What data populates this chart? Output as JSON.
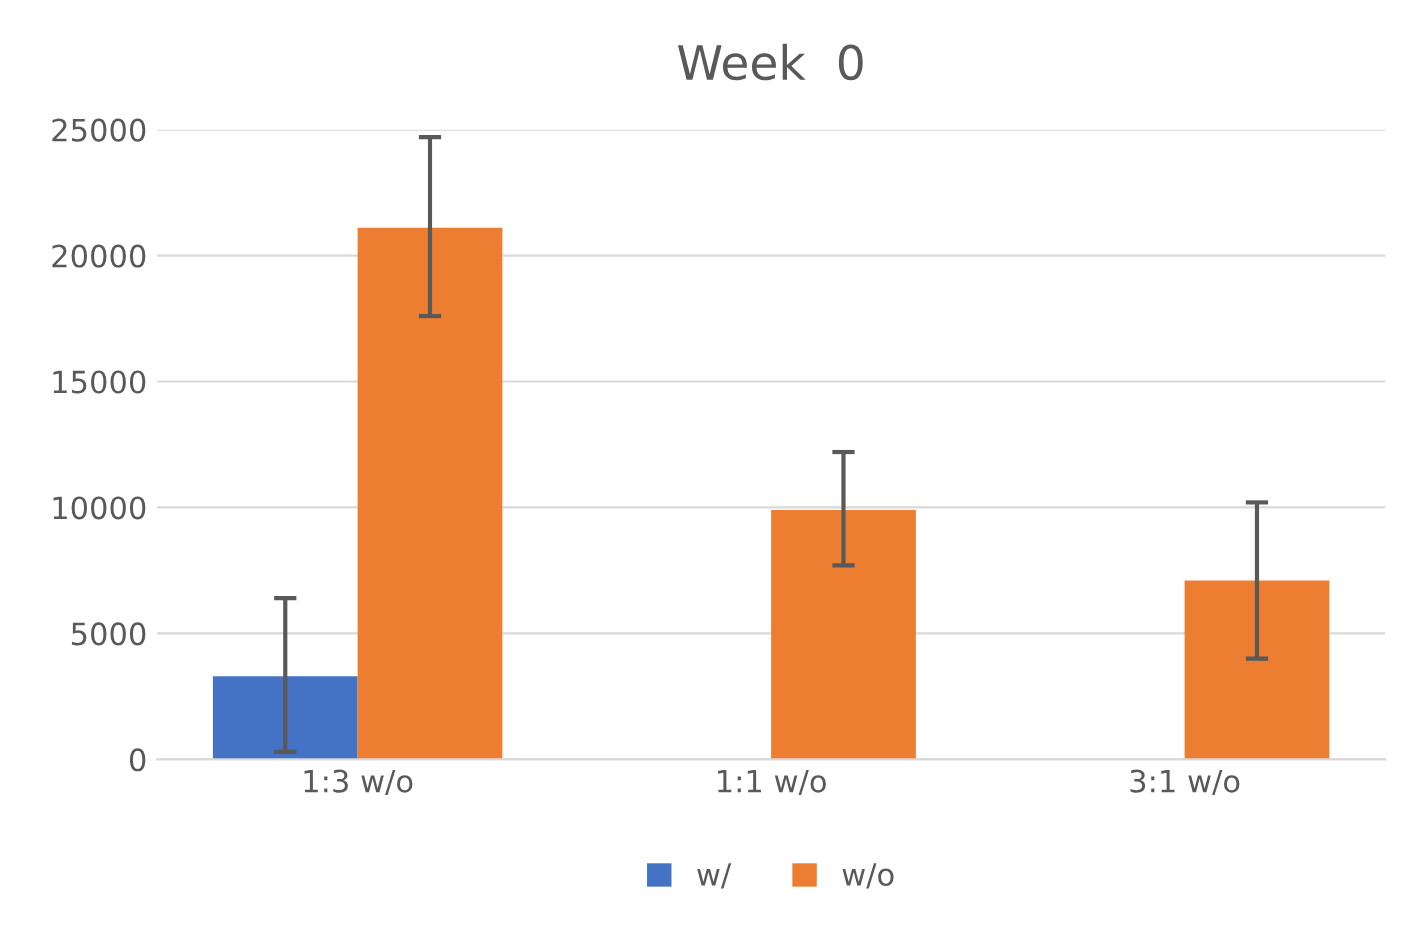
{
  "chart_data": {
    "type": "bar",
    "title": "Week  0",
    "categories": [
      "1:3 w/o",
      "1:1 w/o",
      "3:1 w/o"
    ],
    "series": [
      {
        "name": "w/",
        "color": "#4472c4",
        "values": [
          3300,
          null,
          null
        ],
        "errors": [
          [
            300,
            6400
          ],
          null,
          null
        ]
      },
      {
        "name": "w/o",
        "color": "#ed7d31",
        "values": [
          21100,
          9900,
          7100
        ],
        "errors": [
          [
            17600,
            24700
          ],
          [
            7700,
            12200
          ],
          [
            4000,
            10200
          ]
        ]
      }
    ],
    "ylim": [
      0,
      25000
    ],
    "yticks": [
      0,
      5000,
      10000,
      15000,
      20000,
      25000
    ],
    "grid": "y",
    "legend": "bottom"
  }
}
